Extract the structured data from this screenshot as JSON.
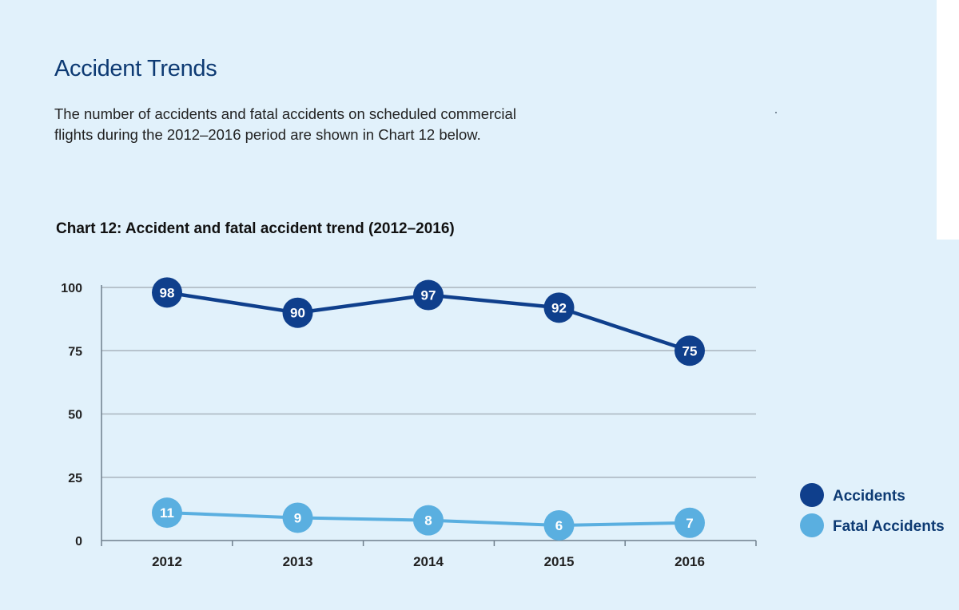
{
  "page": {
    "title": "Accident Trends",
    "intro": "The number of accidents and fatal accidents on scheduled commercial flights during the 2012–2016 period are shown in Chart 12 below."
  },
  "chart_data": {
    "type": "line",
    "title": "Chart 12: Accident and fatal accident trend (2012–2016)",
    "xlabel": "",
    "ylabel": "",
    "categories": [
      "2012",
      "2013",
      "2014",
      "2015",
      "2016"
    ],
    "ylim": [
      0,
      100
    ],
    "yticks": [
      0,
      25,
      50,
      75,
      100
    ],
    "grid": true,
    "legend_position": "right",
    "series": [
      {
        "name": "Accidents",
        "values": [
          98,
          90,
          97,
          92,
          75
        ],
        "color": "#0f3f8c"
      },
      {
        "name": "Fatal Accidents",
        "values": [
          11,
          9,
          8,
          6,
          7
        ],
        "color": "#5aafe0"
      }
    ]
  }
}
